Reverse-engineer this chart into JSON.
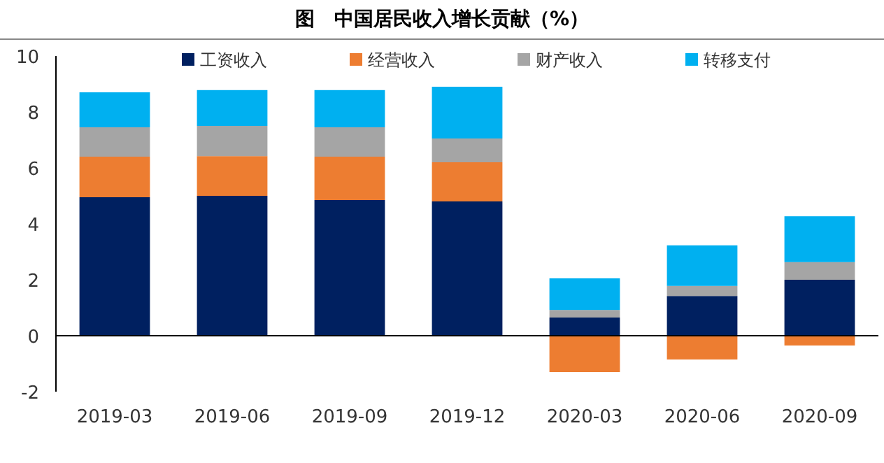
{
  "chart_data": {
    "type": "bar",
    "stacked": true,
    "title": "图　中国居民收入增长贡献（%）",
    "categories": [
      "2019-03",
      "2019-06",
      "2019-09",
      "2019-12",
      "2020-03",
      "2020-06",
      "2020-09"
    ],
    "series": [
      {
        "name": "工资收入",
        "color": "#002060",
        "values": [
          4.95,
          5.0,
          4.85,
          4.8,
          0.65,
          1.42,
          2.0
        ]
      },
      {
        "name": "经营收入",
        "color": "#ed7d31",
        "values": [
          1.45,
          1.42,
          1.55,
          1.4,
          -1.3,
          -0.85,
          -0.35
        ]
      },
      {
        "name": "财产收入",
        "color": "#a5a5a5",
        "values": [
          1.05,
          1.08,
          1.05,
          0.85,
          0.27,
          0.36,
          0.63
        ]
      },
      {
        "name": "转移支付",
        "color": "#00b0f0",
        "values": [
          1.25,
          1.28,
          1.33,
          1.85,
          1.13,
          1.45,
          1.64
        ]
      }
    ],
    "ylim": [
      -2,
      10
    ],
    "yticks": [
      -2,
      0,
      2,
      4,
      6,
      8,
      10
    ],
    "legend": "top"
  }
}
